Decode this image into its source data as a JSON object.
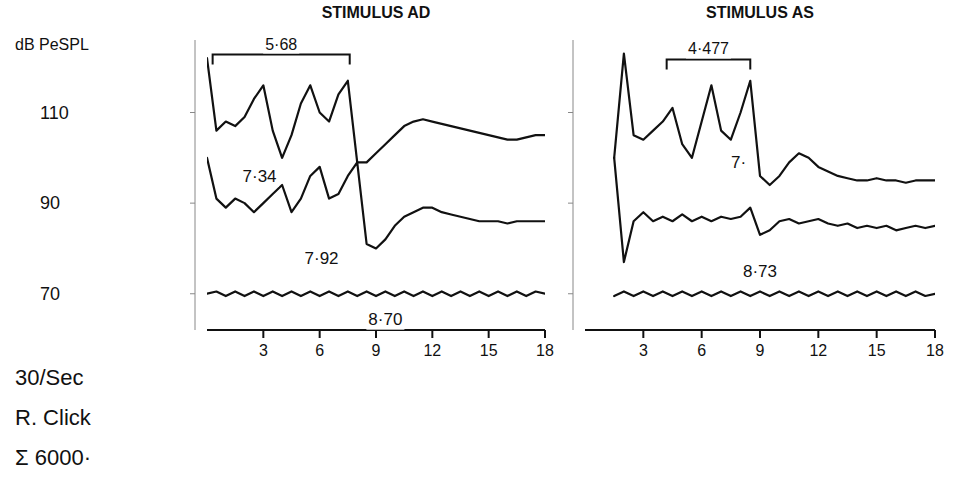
{
  "chart_data": [
    {
      "type": "line",
      "title": "STIMULUS AD",
      "y_label": "dB PeSPL",
      "xlim": [
        0,
        18
      ],
      "xticks": [
        3,
        6,
        9,
        12,
        15,
        18
      ],
      "ylim": [
        62,
        126
      ],
      "yticks": [
        110,
        90,
        70
      ],
      "series": [
        {
          "color": "#111111",
          "x": [
            0,
            0.5,
            1,
            1.5,
            2,
            2.5,
            3,
            3.5,
            4,
            4.5,
            5,
            5.5,
            6,
            6.5,
            7,
            7.5,
            8,
            8.5,
            9,
            9.5,
            10,
            10.5,
            11,
            11.5,
            12,
            12.5,
            13,
            13.5,
            14,
            14.5,
            15,
            15.5,
            16,
            16.5,
            17,
            17.5,
            18
          ],
          "values": [
            122,
            106,
            108,
            107,
            109,
            113,
            116,
            106,
            100,
            105,
            112,
            116,
            110,
            108,
            114,
            117,
            99,
            99,
            101,
            103,
            105,
            107,
            108,
            108.5,
            108,
            107.5,
            107,
            106.5,
            106,
            105.5,
            105,
            104.5,
            104,
            104,
            104.5,
            105,
            105
          ]
        },
        {
          "color": "#111111",
          "x": [
            0,
            0.5,
            1,
            1.5,
            2,
            2.5,
            3,
            3.5,
            4,
            4.5,
            5,
            5.5,
            6,
            6.5,
            7,
            7.5,
            8,
            8.5,
            9,
            9.5,
            10,
            10.5,
            11,
            11.5,
            12,
            12.5,
            13,
            13.5,
            14,
            14.5,
            15,
            15.5,
            16,
            16.5,
            17,
            17.5,
            18
          ],
          "values": [
            100,
            91,
            89,
            91,
            90,
            88,
            90,
            92,
            94,
            88,
            91,
            96,
            98,
            91,
            92,
            96,
            99,
            81,
            80,
            82,
            85,
            87,
            88,
            89,
            89,
            88,
            87.5,
            87,
            86.5,
            86,
            86,
            86,
            85.5,
            86,
            86,
            86,
            86
          ]
        },
        {
          "color": "#111111",
          "x": [
            0,
            0.5,
            1,
            1.5,
            2,
            2.5,
            3,
            3.5,
            4,
            4.5,
            5,
            5.5,
            6,
            6.5,
            7,
            7.5,
            8,
            8.5,
            9,
            9.5,
            10,
            10.5,
            11,
            11.5,
            12,
            12.5,
            13,
            13.5,
            14,
            14.5,
            15,
            15.5,
            16,
            16.5,
            17,
            17.5,
            18
          ],
          "values": [
            70,
            70.5,
            69.5,
            70.5,
            69.5,
            70.5,
            69.5,
            70.5,
            69.5,
            70.5,
            69.5,
            70.5,
            69.5,
            70.5,
            69.5,
            70.5,
            69.5,
            70.5,
            69.5,
            70.5,
            69.5,
            70.5,
            69.5,
            70.5,
            69.5,
            70.5,
            69.5,
            70.5,
            69.5,
            70.5,
            69.5,
            70.5,
            69.5,
            70.5,
            69.5,
            70.5,
            70
          ]
        }
      ],
      "annotations": [
        {
          "text": "7·34",
          "x": 2.8,
          "y": 96
        },
        {
          "text": "7·92",
          "x": 6.1,
          "y": 78
        },
        {
          "text": "8·70",
          "x": 9.5,
          "y": 64.5
        }
      ],
      "brackets": [
        {
          "text": "5·68",
          "x": 0.3,
          "x_end": 7.6,
          "y": 122.8
        }
      ],
      "notes": [
        "30/Sec",
        "R. Click",
        "Σ 6000·"
      ]
    },
    {
      "type": "line",
      "title": "STIMULUS AS",
      "xlim": [
        0,
        18
      ],
      "xticks": [
        3,
        6,
        9,
        12,
        15,
        18
      ],
      "ylim": [
        62,
        126
      ],
      "yticks": [
        110,
        90,
        70
      ],
      "tick_labels": "x",
      "series": [
        {
          "color": "#111111",
          "x": [
            1.5,
            2,
            2.5,
            3,
            3.5,
            4,
            4.5,
            5,
            5.5,
            6,
            6.5,
            7,
            7.5,
            8,
            8.5,
            9,
            9.5,
            10,
            10.5,
            11,
            11.5,
            12,
            12.5,
            13,
            13.5,
            14,
            14.5,
            15,
            15.5,
            16,
            16.5,
            17,
            17.5,
            18
          ],
          "values": [
            100,
            123,
            105,
            104,
            106,
            108,
            111,
            103,
            100,
            108,
            116,
            106,
            104,
            110,
            117,
            96,
            94,
            96,
            99,
            101,
            100,
            98,
            97,
            96,
            95.5,
            95,
            95,
            95.5,
            95,
            95,
            94.5,
            95,
            95,
            95
          ]
        },
        {
          "color": "#111111",
          "x": [
            1.5,
            2,
            2.5,
            3,
            3.5,
            4,
            4.5,
            5,
            5.5,
            6,
            6.5,
            7,
            7.5,
            8,
            8.5,
            9,
            9.5,
            10,
            10.5,
            11,
            11.5,
            12,
            12.5,
            13,
            13.5,
            14,
            14.5,
            15,
            15.5,
            16,
            16.5,
            17,
            17.5,
            18
          ],
          "values": [
            100,
            77,
            86,
            88,
            86,
            87,
            86,
            87.5,
            86,
            87,
            86,
            87,
            86.5,
            87,
            89,
            83,
            84,
            86,
            86.5,
            85.5,
            86,
            86.5,
            85.5,
            85,
            85.5,
            84.5,
            85,
            84.5,
            85,
            84,
            84.5,
            85,
            84.5,
            85
          ]
        },
        {
          "color": "#111111",
          "x": [
            1.5,
            2,
            2.5,
            3,
            3.5,
            4,
            4.5,
            5,
            5.5,
            6,
            6.5,
            7,
            7.5,
            8,
            8.5,
            9,
            9.5,
            10,
            10.5,
            11,
            11.5,
            12,
            12.5,
            13,
            13.5,
            14,
            14.5,
            15,
            15.5,
            16,
            16.5,
            17,
            17.5,
            18
          ],
          "values": [
            69.5,
            70.5,
            69.5,
            70.5,
            69.5,
            70.5,
            69.5,
            70.5,
            69.5,
            70.5,
            69.5,
            70.5,
            69.5,
            70.5,
            69.5,
            70.5,
            69.5,
            70.5,
            69.5,
            70.5,
            69.5,
            70.5,
            69.5,
            70.5,
            69.5,
            70.5,
            69.5,
            70.5,
            69.5,
            70.5,
            69.5,
            70.5,
            69.5,
            70
          ]
        }
      ],
      "annotations": [
        {
          "text": "7·",
          "x": 7.9,
          "y": 99
        },
        {
          "text": "8·73",
          "x": 9.0,
          "y": 75
        }
      ],
      "brackets": [
        {
          "text": "4·477",
          "x": 4.2,
          "x_end": 8.5,
          "y": 121.7
        }
      ]
    }
  ]
}
